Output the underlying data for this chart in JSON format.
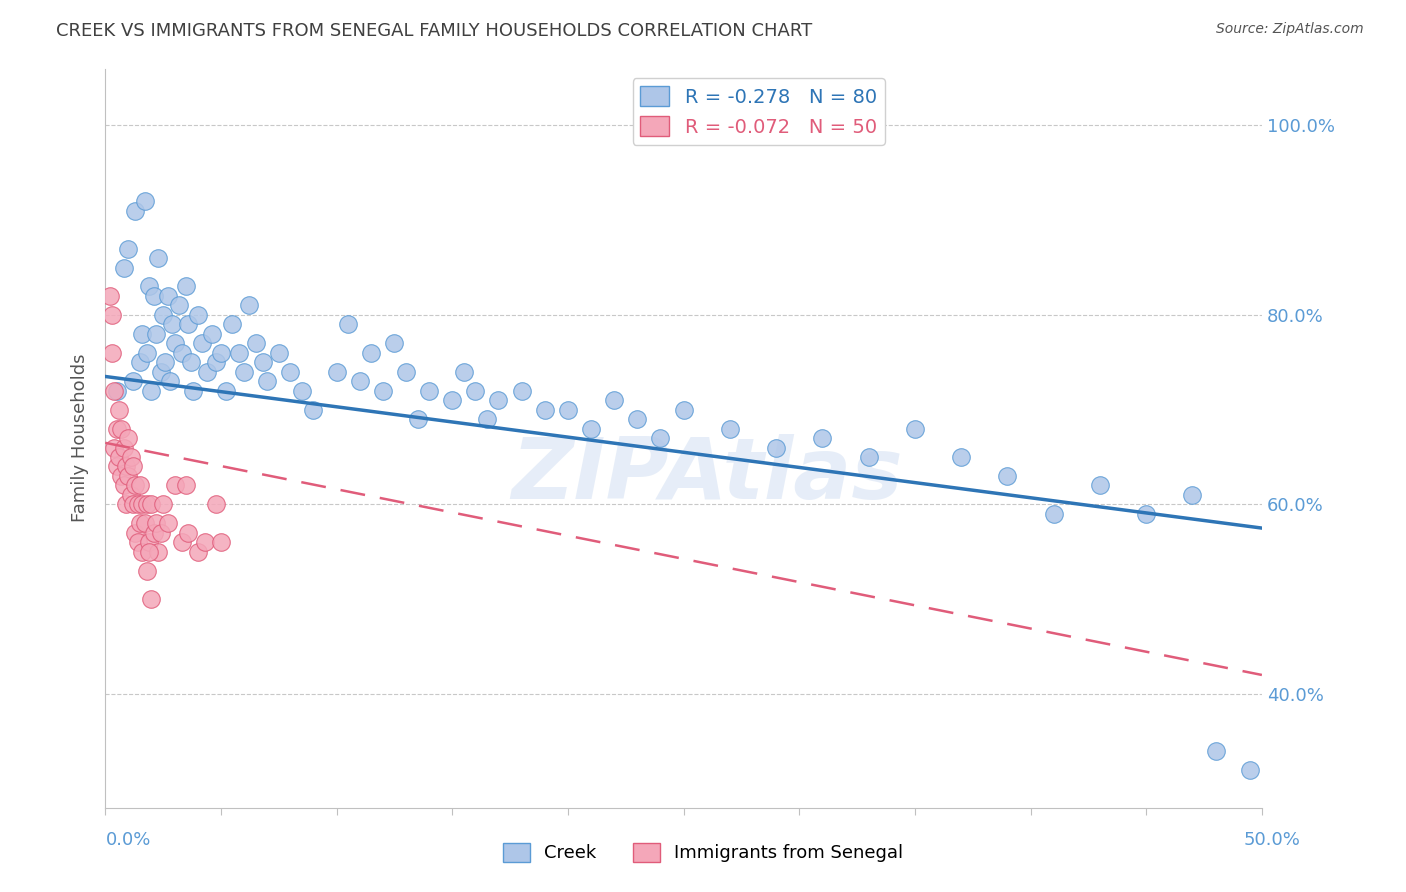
{
  "title": "CREEK VS IMMIGRANTS FROM SENEGAL FAMILY HOUSEHOLDS CORRELATION CHART",
  "source": "Source: ZipAtlas.com",
  "ylabel": "Family Households",
  "xlim": [
    0.0,
    0.5
  ],
  "ylim": [
    0.28,
    1.06
  ],
  "yticks": [
    0.4,
    0.6,
    0.8,
    1.0
  ],
  "ytick_labels": [
    "40.0%",
    "60.0%",
    "80.0%",
    "100.0%"
  ],
  "xticks": [
    0.0,
    0.05,
    0.1,
    0.15,
    0.2,
    0.25,
    0.3,
    0.35,
    0.4,
    0.45,
    0.5
  ],
  "watermark": "ZIPAtlas",
  "creek_color": "#aec6e8",
  "creek_edge_color": "#5b9bd5",
  "senegal_color": "#f4a7b9",
  "senegal_edge_color": "#e05c7a",
  "creek_R": -0.278,
  "creek_N": 80,
  "senegal_R": -0.072,
  "senegal_N": 50,
  "creek_line_color": "#2e75b6",
  "senegal_line_color": "#e05c7a",
  "axis_color": "#5b9bd5",
  "grid_color": "#c8c8c8",
  "creek_x": [
    0.005,
    0.008,
    0.01,
    0.012,
    0.013,
    0.015,
    0.016,
    0.017,
    0.018,
    0.019,
    0.02,
    0.021,
    0.022,
    0.023,
    0.024,
    0.025,
    0.026,
    0.027,
    0.028,
    0.029,
    0.03,
    0.032,
    0.033,
    0.035,
    0.036,
    0.037,
    0.038,
    0.04,
    0.042,
    0.044,
    0.046,
    0.048,
    0.05,
    0.052,
    0.055,
    0.058,
    0.06,
    0.062,
    0.065,
    0.068,
    0.07,
    0.075,
    0.08,
    0.085,
    0.09,
    0.1,
    0.105,
    0.11,
    0.115,
    0.12,
    0.125,
    0.13,
    0.135,
    0.14,
    0.15,
    0.155,
    0.16,
    0.165,
    0.17,
    0.18,
    0.19,
    0.2,
    0.21,
    0.22,
    0.23,
    0.24,
    0.25,
    0.27,
    0.29,
    0.31,
    0.33,
    0.35,
    0.37,
    0.39,
    0.41,
    0.43,
    0.45,
    0.47,
    0.48,
    0.495
  ],
  "creek_y": [
    0.72,
    0.85,
    0.87,
    0.73,
    0.91,
    0.75,
    0.78,
    0.92,
    0.76,
    0.83,
    0.72,
    0.82,
    0.78,
    0.86,
    0.74,
    0.8,
    0.75,
    0.82,
    0.73,
    0.79,
    0.77,
    0.81,
    0.76,
    0.83,
    0.79,
    0.75,
    0.72,
    0.8,
    0.77,
    0.74,
    0.78,
    0.75,
    0.76,
    0.72,
    0.79,
    0.76,
    0.74,
    0.81,
    0.77,
    0.75,
    0.73,
    0.76,
    0.74,
    0.72,
    0.7,
    0.74,
    0.79,
    0.73,
    0.76,
    0.72,
    0.77,
    0.74,
    0.69,
    0.72,
    0.71,
    0.74,
    0.72,
    0.69,
    0.71,
    0.72,
    0.7,
    0.7,
    0.68,
    0.71,
    0.69,
    0.67,
    0.7,
    0.68,
    0.66,
    0.67,
    0.65,
    0.68,
    0.65,
    0.63,
    0.59,
    0.62,
    0.59,
    0.61,
    0.34,
    0.32
  ],
  "senegal_x": [
    0.002,
    0.003,
    0.003,
    0.004,
    0.004,
    0.005,
    0.005,
    0.006,
    0.006,
    0.007,
    0.007,
    0.008,
    0.008,
    0.009,
    0.009,
    0.01,
    0.01,
    0.011,
    0.011,
    0.012,
    0.012,
    0.013,
    0.013,
    0.014,
    0.014,
    0.015,
    0.015,
    0.016,
    0.016,
    0.017,
    0.018,
    0.019,
    0.02,
    0.021,
    0.022,
    0.023,
    0.024,
    0.025,
    0.027,
    0.03,
    0.033,
    0.036,
    0.04,
    0.043,
    0.048,
    0.018,
    0.019,
    0.02,
    0.035,
    0.05
  ],
  "senegal_y": [
    0.82,
    0.76,
    0.8,
    0.66,
    0.72,
    0.68,
    0.64,
    0.7,
    0.65,
    0.68,
    0.63,
    0.66,
    0.62,
    0.64,
    0.6,
    0.67,
    0.63,
    0.65,
    0.61,
    0.64,
    0.6,
    0.62,
    0.57,
    0.6,
    0.56,
    0.62,
    0.58,
    0.6,
    0.55,
    0.58,
    0.6,
    0.56,
    0.6,
    0.57,
    0.58,
    0.55,
    0.57,
    0.6,
    0.58,
    0.62,
    0.56,
    0.57,
    0.55,
    0.56,
    0.6,
    0.53,
    0.55,
    0.5,
    0.62,
    0.56
  ],
  "creek_line_y0": 0.735,
  "creek_line_y1": 0.575,
  "senegal_line_y0": 0.665,
  "senegal_line_y1": 0.42
}
